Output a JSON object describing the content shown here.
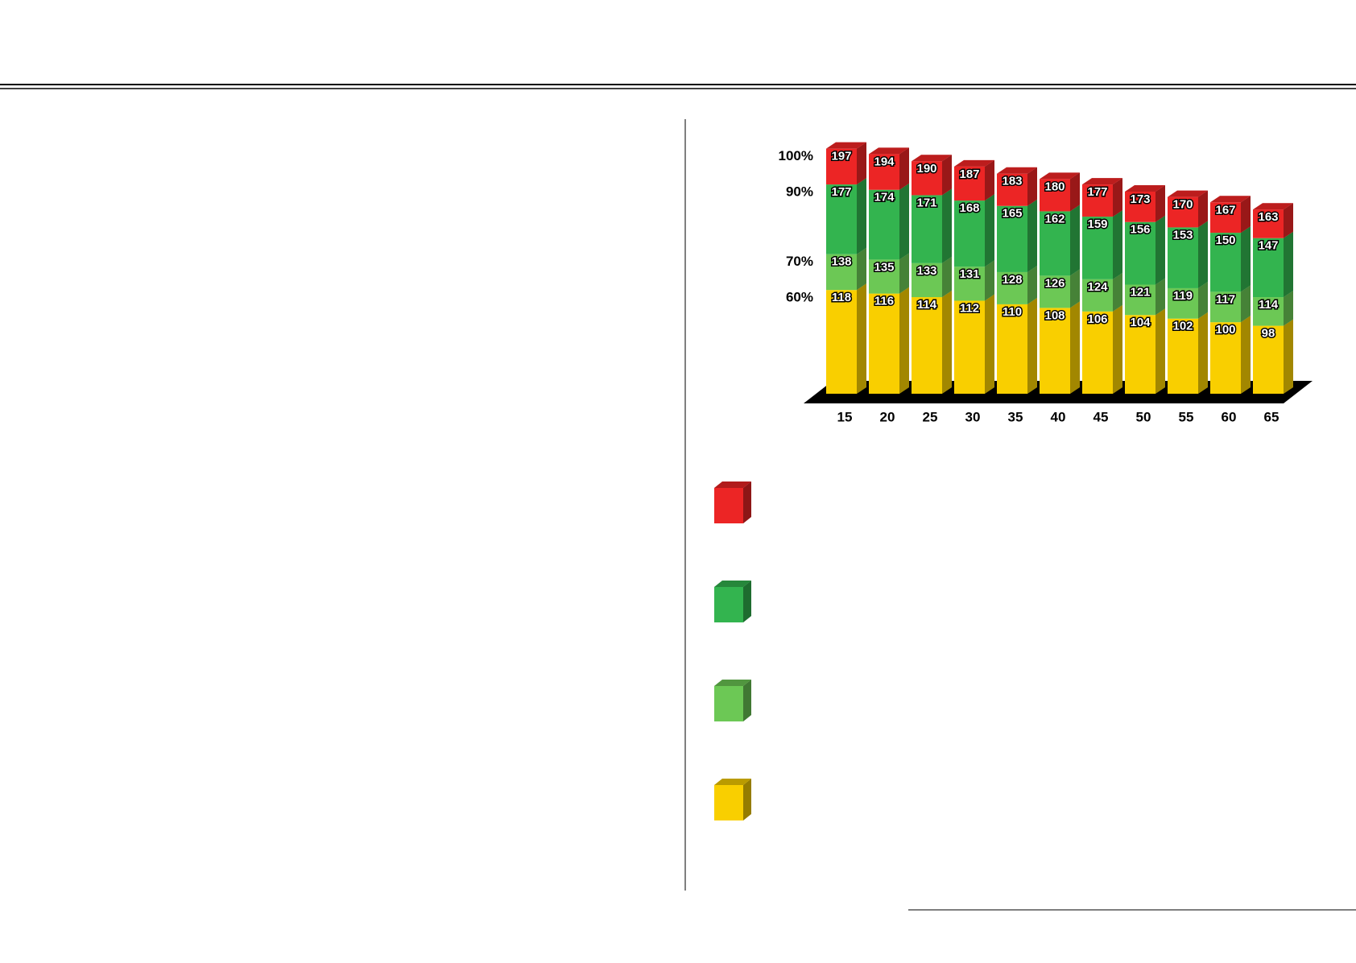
{
  "chart_data": {
    "type": "bar",
    "categories": [
      "15",
      "20",
      "25",
      "30",
      "35",
      "40",
      "45",
      "50",
      "55",
      "60",
      "65"
    ],
    "ylabels": [
      "60%",
      "70%",
      "90%",
      "100%"
    ],
    "series": [
      {
        "color": "#f9cf00",
        "values": [
          118,
          116,
          114,
          112,
          110,
          108,
          106,
          104,
          102,
          100,
          98
        ]
      },
      {
        "color": "#6cc855",
        "values": [
          138,
          135,
          133,
          131,
          128,
          126,
          124,
          121,
          119,
          117,
          114
        ]
      },
      {
        "color": "#33b44f",
        "values": [
          177,
          174,
          171,
          168,
          165,
          162,
          159,
          156,
          153,
          150,
          147
        ]
      },
      {
        "color": "#ec2525",
        "values": [
          197,
          194,
          190,
          187,
          183,
          180,
          177,
          173,
          170,
          167,
          163
        ]
      }
    ],
    "ylim": [
      60,
      200
    ]
  }
}
